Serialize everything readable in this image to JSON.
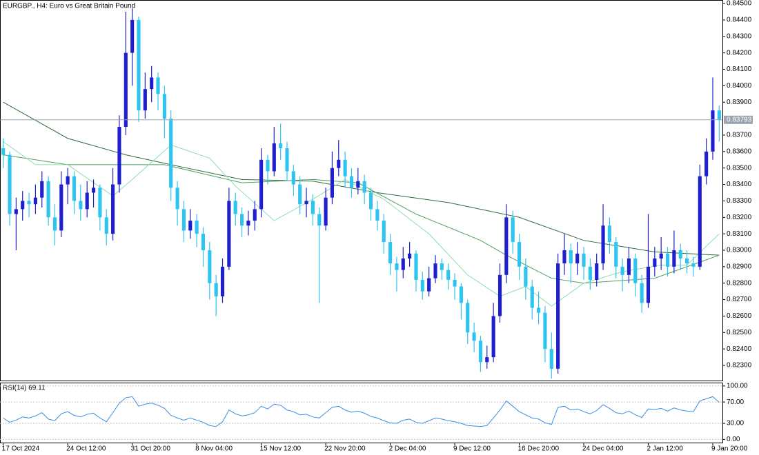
{
  "chart_data": [
    {
      "type": "candlestick",
      "title": "EURGBP., H4:  Euro vs Great Britain Pound",
      "up_color": "#1f1fd0",
      "down_color": "#2ec4f0",
      "xlim": [
        -0.5,
        111.5
      ],
      "ylim": [
        0.82208,
        0.84517
      ],
      "yticks": [
        {
          "value": 0.845,
          "label": "0.84500"
        },
        {
          "value": 0.844,
          "label": "0.84400"
        },
        {
          "value": 0.843,
          "label": "0.84300"
        },
        {
          "value": 0.842,
          "label": "0.84200"
        },
        {
          "value": 0.841,
          "label": "0.84100"
        },
        {
          "value": 0.84,
          "label": "0.84000"
        },
        {
          "value": 0.839,
          "label": "0.83900"
        },
        {
          "value": 0.837,
          "label": "0.83700"
        },
        {
          "value": 0.836,
          "label": "0.83600"
        },
        {
          "value": 0.835,
          "label": "0.83500"
        },
        {
          "value": 0.834,
          "label": "0.83400"
        },
        {
          "value": 0.833,
          "label": "0.83300"
        },
        {
          "value": 0.832,
          "label": "0.83200"
        },
        {
          "value": 0.831,
          "label": "0.83100"
        },
        {
          "value": 0.83,
          "label": "0.83000"
        },
        {
          "value": 0.829,
          "label": "0.82900"
        },
        {
          "value": 0.828,
          "label": "0.82800"
        },
        {
          "value": 0.827,
          "label": "0.82700"
        },
        {
          "value": 0.826,
          "label": "0.82600"
        },
        {
          "value": 0.825,
          "label": "0.82500"
        },
        {
          "value": 0.824,
          "label": "0.82400"
        },
        {
          "value": 0.823,
          "label": "0.82300"
        }
      ],
      "last_price": {
        "value": 0.83793,
        "label": "0.83793"
      },
      "last_price_color": "#9aa4b0",
      "open": [
        0.8362,
        0.8358,
        0.8322,
        0.8325,
        0.833,
        0.8328,
        0.8332,
        0.8342,
        0.832,
        0.8312,
        0.834,
        0.8345,
        0.833,
        0.8325,
        0.8335,
        0.8338,
        0.832,
        0.831,
        0.834,
        0.8375,
        0.842,
        0.844,
        0.8385,
        0.8398,
        0.8405,
        0.8395,
        0.838,
        0.8338,
        0.8325,
        0.8312,
        0.8318,
        0.831,
        0.83,
        0.828,
        0.8272,
        0.829,
        0.833,
        0.8322,
        0.8315,
        0.8318,
        0.8325,
        0.8355,
        0.8348,
        0.8365,
        0.8362,
        0.8348,
        0.834,
        0.8328,
        0.833,
        0.8322,
        0.8315,
        0.8332,
        0.835,
        0.8355,
        0.8345,
        0.8338,
        0.8342,
        0.8335,
        0.8325,
        0.8318,
        0.8305,
        0.8292,
        0.8288,
        0.8295,
        0.8298,
        0.8282,
        0.8275,
        0.8283,
        0.8292,
        0.8288,
        0.8282,
        0.8278,
        0.8268,
        0.825,
        0.8245,
        0.8232,
        0.8235,
        0.826,
        0.8285,
        0.832,
        0.8305,
        0.829,
        0.8278,
        0.8265,
        0.8262,
        0.824,
        0.8228,
        0.8292,
        0.83,
        0.8292,
        0.8298,
        0.829,
        0.8282,
        0.8292,
        0.8315,
        0.8305,
        0.829,
        0.8285,
        0.8295,
        0.828,
        0.8268,
        0.829,
        0.8295,
        0.8298,
        0.829,
        0.83,
        0.8295,
        0.8292,
        0.829,
        0.8345,
        0.836,
        0.8385
      ],
      "high": [
        0.8368,
        0.836,
        0.8332,
        0.8336,
        0.8335,
        0.834,
        0.8348,
        0.8345,
        0.8328,
        0.8348,
        0.835,
        0.8348,
        0.834,
        0.8342,
        0.8343,
        0.834,
        0.8325,
        0.835,
        0.8382,
        0.8445,
        0.8447,
        0.8442,
        0.8408,
        0.8412,
        0.8408,
        0.84,
        0.8385,
        0.8342,
        0.833,
        0.8325,
        0.8322,
        0.8314,
        0.8305,
        0.8285,
        0.8295,
        0.8338,
        0.8335,
        0.8326,
        0.8324,
        0.833,
        0.8362,
        0.8358,
        0.8375,
        0.8377,
        0.8366,
        0.8352,
        0.8345,
        0.8338,
        0.8334,
        0.8326,
        0.8338,
        0.836,
        0.8367,
        0.836,
        0.835,
        0.835,
        0.8346,
        0.8338,
        0.833,
        0.8322,
        0.831,
        0.8296,
        0.8302,
        0.8305,
        0.83,
        0.8287,
        0.829,
        0.8297,
        0.8295,
        0.8292,
        0.8286,
        0.828,
        0.827,
        0.8256,
        0.8248,
        0.8242,
        0.8268,
        0.8292,
        0.8328,
        0.8324,
        0.831,
        0.8295,
        0.8282,
        0.8275,
        0.8266,
        0.825,
        0.8298,
        0.831,
        0.8304,
        0.8305,
        0.8302,
        0.8295,
        0.8298,
        0.8328,
        0.832,
        0.8308,
        0.8295,
        0.8302,
        0.8298,
        0.8285,
        0.8322,
        0.8302,
        0.8308,
        0.8302,
        0.8312,
        0.8304,
        0.83,
        0.8296,
        0.8352,
        0.8368,
        0.8405,
        0.8388
      ],
      "low": [
        0.835,
        0.8315,
        0.83,
        0.8318,
        0.832,
        0.8322,
        0.8326,
        0.8315,
        0.8303,
        0.8308,
        0.8328,
        0.8322,
        0.8318,
        0.832,
        0.8326,
        0.8312,
        0.8303,
        0.8306,
        0.8335,
        0.837,
        0.84,
        0.8378,
        0.838,
        0.839,
        0.8385,
        0.8368,
        0.833,
        0.8315,
        0.8305,
        0.8307,
        0.8302,
        0.829,
        0.827,
        0.826,
        0.8268,
        0.8288,
        0.8315,
        0.8308,
        0.8309,
        0.8312,
        0.832,
        0.834,
        0.8345,
        0.8355,
        0.8342,
        0.8333,
        0.8322,
        0.832,
        0.8315,
        0.8268,
        0.8312,
        0.8328,
        0.8345,
        0.8338,
        0.8332,
        0.8334,
        0.8328,
        0.8318,
        0.8312,
        0.8298,
        0.8285,
        0.8275,
        0.8283,
        0.829,
        0.8275,
        0.827,
        0.8272,
        0.828,
        0.8282,
        0.8276,
        0.827,
        0.8258,
        0.8243,
        0.8238,
        0.8226,
        0.8228,
        0.8232,
        0.8256,
        0.828,
        0.8298,
        0.8282,
        0.827,
        0.8258,
        0.8255,
        0.8232,
        0.8222,
        0.8225,
        0.8285,
        0.828,
        0.8285,
        0.8282,
        0.8276,
        0.8278,
        0.8288,
        0.8298,
        0.8283,
        0.8275,
        0.828,
        0.8272,
        0.8262,
        0.8265,
        0.8284,
        0.8288,
        0.8284,
        0.8286,
        0.8288,
        0.8286,
        0.8284,
        0.8288,
        0.834,
        0.8355,
        0.8366
      ],
      "close": [
        0.8358,
        0.8322,
        0.8325,
        0.833,
        0.8328,
        0.8332,
        0.8342,
        0.832,
        0.8312,
        0.834,
        0.8345,
        0.833,
        0.8325,
        0.8335,
        0.8338,
        0.832,
        0.831,
        0.834,
        0.8375,
        0.842,
        0.844,
        0.8385,
        0.8398,
        0.8405,
        0.8395,
        0.838,
        0.8338,
        0.8325,
        0.8312,
        0.8318,
        0.831,
        0.83,
        0.828,
        0.8272,
        0.829,
        0.833,
        0.8322,
        0.8315,
        0.8318,
        0.8325,
        0.8355,
        0.8348,
        0.8365,
        0.8362,
        0.8348,
        0.834,
        0.8328,
        0.833,
        0.8322,
        0.8315,
        0.8332,
        0.835,
        0.8355,
        0.8345,
        0.8338,
        0.8342,
        0.8335,
        0.8325,
        0.8318,
        0.8305,
        0.8292,
        0.8288,
        0.8295,
        0.8298,
        0.8282,
        0.8275,
        0.8283,
        0.8292,
        0.8288,
        0.8282,
        0.8278,
        0.8268,
        0.825,
        0.8245,
        0.8232,
        0.8235,
        0.826,
        0.8285,
        0.832,
        0.8305,
        0.829,
        0.8278,
        0.8265,
        0.8262,
        0.824,
        0.8228,
        0.8292,
        0.83,
        0.8292,
        0.8298,
        0.829,
        0.8282,
        0.8292,
        0.8315,
        0.8305,
        0.829,
        0.8285,
        0.8295,
        0.828,
        0.8268,
        0.829,
        0.8295,
        0.8298,
        0.829,
        0.83,
        0.8295,
        0.8292,
        0.829,
        0.8345,
        0.836,
        0.8385,
        0.83793
      ],
      "overlays": [
        {
          "color": "#2e6b3a",
          "x": [
            0,
            10,
            19,
            26,
            37,
            48,
            58,
            69,
            80,
            90,
            101,
            111
          ],
          "values": [
            0.839,
            0.8368,
            0.8358,
            0.8352,
            0.8343,
            0.8342,
            0.8335,
            0.8329,
            0.832,
            0.8306,
            0.8299,
            0.8297
          ]
        },
        {
          "color": "#4f9e60",
          "x": [
            0,
            10,
            25,
            37,
            48,
            55,
            64,
            74,
            78,
            85,
            90,
            101,
            111
          ],
          "values": [
            0.8358,
            0.8352,
            0.8352,
            0.8341,
            0.8343,
            0.8341,
            0.8322,
            0.8306,
            0.8297,
            0.8283,
            0.828,
            0.8283,
            0.8297
          ]
        },
        {
          "color": "#8fdcae",
          "x": [
            0,
            5,
            10,
            17,
            20,
            26,
            32,
            36,
            42,
            48,
            53,
            59,
            66,
            72,
            77,
            81,
            85,
            90,
            96,
            102,
            106,
            111
          ],
          "values": [
            0.8366,
            0.8352,
            0.8352,
            0.8333,
            0.8343,
            0.8364,
            0.8356,
            0.8339,
            0.8318,
            0.8331,
            0.8343,
            0.8331,
            0.831,
            0.8285,
            0.8272,
            0.8278,
            0.8266,
            0.828,
            0.8287,
            0.8291,
            0.8291,
            0.831
          ]
        }
      ]
    },
    {
      "type": "line",
      "title": "RSI(14) 69.11",
      "color": "#3a8ee6",
      "xlim": [
        -0.5,
        111.5
      ],
      "ylim": [
        -6,
        105
      ],
      "yticks": [
        {
          "value": 100,
          "label": "100.00"
        },
        {
          "value": 70,
          "label": "70.00"
        },
        {
          "value": 30,
          "label": "30.00"
        },
        {
          "value": 0,
          "label": "0.00"
        }
      ],
      "xticks": [
        {
          "value": 0,
          "label": "17 Oct 2024"
        },
        {
          "value": 10,
          "label": "24 Oct 12:00"
        },
        {
          "value": 20,
          "label": "31 Oct 20:00"
        },
        {
          "value": 30,
          "label": "8 Nov 04:00"
        },
        {
          "value": 40,
          "label": "15 Nov 12:00"
        },
        {
          "value": 50,
          "label": "22 Nov 20:00"
        },
        {
          "value": 60,
          "label": "2 Dec 04:00"
        },
        {
          "value": 70,
          "label": "9 Dec 12:00"
        },
        {
          "value": 80,
          "label": "16 Dec 20:00"
        },
        {
          "value": 90,
          "label": "24 Dec 04:00"
        },
        {
          "value": 100,
          "label": "2 Jan 12:00"
        },
        {
          "value": 110,
          "label": "9 Jan 20:00"
        }
      ],
      "values": [
        40,
        32,
        36,
        42,
        40,
        44,
        50,
        38,
        35,
        48,
        52,
        45,
        42,
        47,
        49,
        40,
        33,
        50,
        68,
        78,
        80,
        62,
        66,
        68,
        64,
        58,
        45,
        40,
        36,
        40,
        36,
        32,
        26,
        24,
        33,
        55,
        48,
        44,
        46,
        50,
        62,
        57,
        66,
        64,
        55,
        52,
        46,
        47,
        42,
        40,
        50,
        60,
        62,
        55,
        51,
        53,
        49,
        43,
        40,
        35,
        31,
        30,
        36,
        38,
        32,
        30,
        35,
        40,
        38,
        35,
        33,
        30,
        26,
        25,
        24,
        26,
        40,
        55,
        72,
        62,
        52,
        46,
        40,
        38,
        31,
        28,
        60,
        62,
        55,
        57,
        52,
        48,
        54,
        65,
        58,
        50,
        48,
        53,
        46,
        41,
        57,
        56,
        58,
        53,
        59,
        55,
        53,
        52,
        72,
        76,
        80,
        69.11
      ]
    }
  ]
}
